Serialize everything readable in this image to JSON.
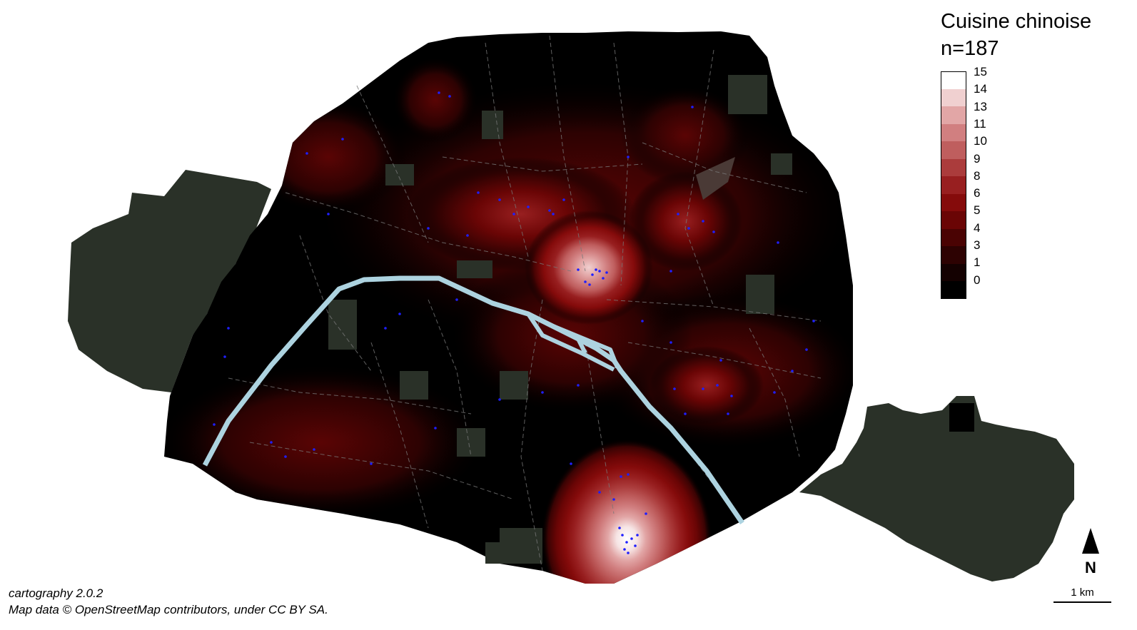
{
  "legend": {
    "title": "Cuisine chinoise",
    "count": "n=187",
    "classes": [
      {
        "label": "15",
        "color": "#ffffff"
      },
      {
        "label": "14",
        "color": "#f0d0d0"
      },
      {
        "label": "13",
        "color": "#e2a6a6"
      },
      {
        "label": "11",
        "color": "#d17f80"
      },
      {
        "label": "10",
        "color": "#bf5e5e"
      },
      {
        "label": "9",
        "color": "#ab3c3c"
      },
      {
        "label": "8",
        "color": "#981f20"
      },
      {
        "label": "6",
        "color": "#850b0b"
      },
      {
        "label": "5",
        "color": "#6a0505"
      },
      {
        "label": "4",
        "color": "#4a0303"
      },
      {
        "label": "3",
        "color": "#2d0202"
      },
      {
        "label": "1",
        "color": "#140101"
      },
      {
        "label": "0",
        "color": "#000000"
      }
    ]
  },
  "credits": {
    "version": "cartography 2.0.2",
    "source": "Map data © OpenStreetMap contributors, under CC BY SA."
  },
  "north_arrow": {
    "label": "N"
  },
  "scale_bar": {
    "label": "1 km"
  },
  "map_colors": {
    "city_fill": "#000000",
    "green_space": "#2a3128",
    "river": "#add3e0",
    "poi_dot": "#1f1fff",
    "street_line": "#777777"
  }
}
